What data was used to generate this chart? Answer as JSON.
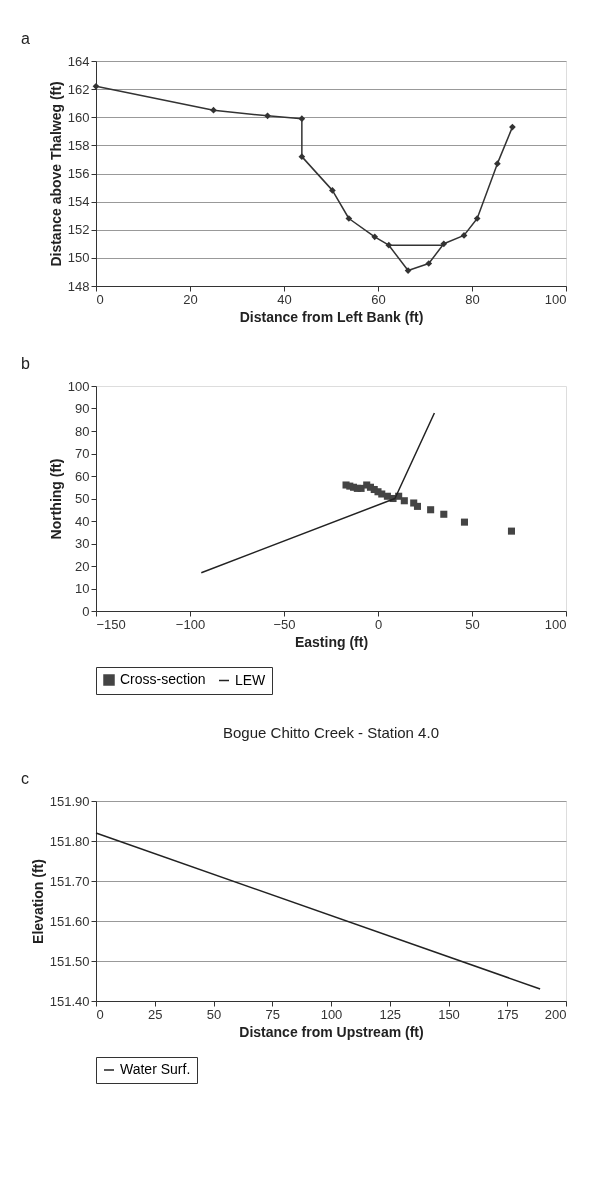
{
  "chart_data": [
    {
      "type": "line",
      "annotations": [
        "a"
      ],
      "xlabel": "Distance from Left Bank (ft)",
      "ylabel": "Distance above Thalweg (ft)",
      "xlim": [
        0,
        100
      ],
      "xticks": [
        0,
        20,
        40,
        60,
        80,
        100
      ],
      "ylim": [
        148,
        164
      ],
      "yticks": [
        148,
        150,
        152,
        154,
        156,
        158,
        160,
        162,
        164
      ],
      "grid": "y",
      "legend": false,
      "series": [
        {
          "color": "#333333",
          "marker": "diamond",
          "x": [
            0,
            25,
            36.5,
            43.8,
            43.8,
            50.3,
            53.8,
            59.3,
            62.3,
            66.4,
            70.8,
            74,
            78.3,
            81.1,
            85.4,
            88.6
          ],
          "values": [
            162.2,
            160.5,
            160.1,
            159.9,
            157.2,
            154.8,
            152.8,
            151.5,
            150.9,
            149.1,
            149.6,
            151.0,
            151.6,
            152.8,
            156.7,
            159.3
          ]
        },
        {
          "color": "#333333",
          "marker": "none",
          "x": [
            62.3,
            74
          ],
          "values": [
            150.9,
            150.9
          ]
        }
      ]
    },
    {
      "type": "scatter",
      "annotations": [
        "b"
      ],
      "xlabel": "Easting (ft)",
      "ylabel": "Northing (ft)",
      "xlim": [
        -150,
        100
      ],
      "xticks": [
        -150,
        -100,
        -50,
        0,
        50,
        100
      ],
      "ylim": [
        0,
        100
      ],
      "yticks": [
        0,
        10,
        20,
        30,
        40,
        50,
        60,
        70,
        80,
        90,
        100
      ],
      "grid": false,
      "legend": "bottom",
      "series": [
        {
          "name": "Cross-section",
          "color": "#444444",
          "marker": "square",
          "x": [
            -17,
            -15,
            -13,
            -11,
            -9,
            -6,
            -4,
            -2,
            0,
            2,
            5,
            8,
            11,
            14,
            19,
            21,
            28,
            35,
            46,
            71
          ],
          "values": [
            56,
            55.5,
            55,
            54.5,
            54.5,
            56,
            55,
            54,
            53,
            52,
            51,
            50,
            51,
            49,
            48,
            46.5,
            45,
            43,
            39.5,
            35.5
          ]
        },
        {
          "type": "line",
          "name": "LEW",
          "color": "#222222",
          "marker": "none",
          "x": [
            -94,
            9,
            30
          ],
          "values": [
            17,
            50,
            88
          ]
        }
      ]
    },
    {
      "type": "line",
      "annotations": [
        "c"
      ],
      "title": "Bogue Chitto Creek - Station 4.0",
      "xlabel": "Distance from Upstream (ft)",
      "ylabel": "Elevation (ft)",
      "xlim": [
        0,
        200
      ],
      "xticks": [
        0,
        25,
        50,
        75,
        100,
        125,
        150,
        175,
        200
      ],
      "ylim": [
        151.4,
        151.9
      ],
      "yticks": [
        {
          "value": 151.4,
          "label": "151.40"
        },
        {
          "value": 151.5,
          "label": "151.50"
        },
        {
          "value": 151.6,
          "label": "151.60"
        },
        {
          "value": 151.7,
          "label": "151.70"
        },
        {
          "value": 151.8,
          "label": "151.80"
        },
        {
          "value": 151.9,
          "label": "151.90"
        }
      ],
      "grid": "y",
      "legend": "bottom",
      "series": [
        {
          "name": "Water Surf.",
          "color": "#222222",
          "marker": "none",
          "x": [
            0,
            189
          ],
          "values": [
            151.82,
            151.43
          ]
        }
      ]
    }
  ]
}
